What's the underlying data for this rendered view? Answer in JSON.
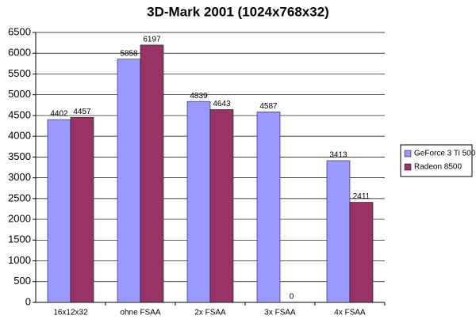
{
  "chart_data": {
    "type": "bar",
    "title": "3D-Mark 2001 (1024x768x32)",
    "categories": [
      "16x12x32",
      "ohne FSAA",
      "2x FSAA",
      "3x FSAA",
      "4x FSAA"
    ],
    "series": [
      {
        "name": "GeForce 3 Ti 500",
        "color": "#9999ff",
        "values": [
          4402,
          5858,
          4839,
          4587,
          3413
        ]
      },
      {
        "name": "Radeon 8500",
        "color": "#993366",
        "values": [
          4457,
          6197,
          4643,
          0,
          2411
        ]
      }
    ],
    "ylim": [
      0,
      6500
    ],
    "yticks": [
      0,
      500,
      1000,
      1500,
      2000,
      2500,
      3000,
      3500,
      4000,
      4500,
      5000,
      5500,
      6000,
      6500
    ],
    "grid": true,
    "legend": "right"
  }
}
